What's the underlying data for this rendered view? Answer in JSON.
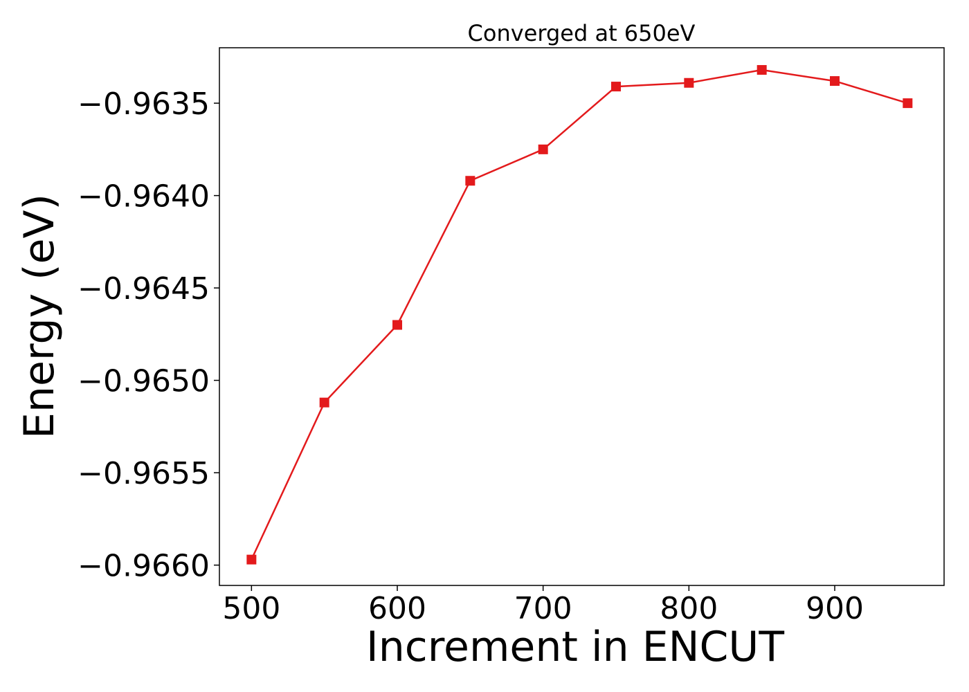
{
  "chart_data": {
    "type": "line",
    "title": "Converged at 650eV",
    "xlabel": "Increment in ENCUT",
    "ylabel": "Energy (eV)",
    "x": [
      500,
      550,
      600,
      650,
      700,
      750,
      800,
      850,
      900,
      950
    ],
    "series": [
      {
        "values": [
          -0.96597,
          -0.96512,
          -0.9647,
          -0.96392,
          -0.96375,
          -0.96341,
          -0.96339,
          -0.96332,
          -0.96338,
          -0.9635
        ],
        "color": "#e31a1c",
        "marker": "square"
      }
    ],
    "xlim": [
      478,
      975
    ],
    "ylim": [
      -0.96611,
      -0.9632
    ],
    "xticks": [
      500,
      600,
      700,
      800,
      900
    ],
    "xtick_labels": [
      "500",
      "600",
      "700",
      "800",
      "900"
    ],
    "yticks": [
      -0.966,
      -0.9655,
      -0.965,
      -0.9645,
      -0.964,
      -0.9635
    ],
    "ytick_labels": [
      "−0.9660",
      "−0.9655",
      "−0.9650",
      "−0.9645",
      "−0.9640",
      "−0.9635"
    ],
    "grid": false,
    "legend": "none"
  }
}
